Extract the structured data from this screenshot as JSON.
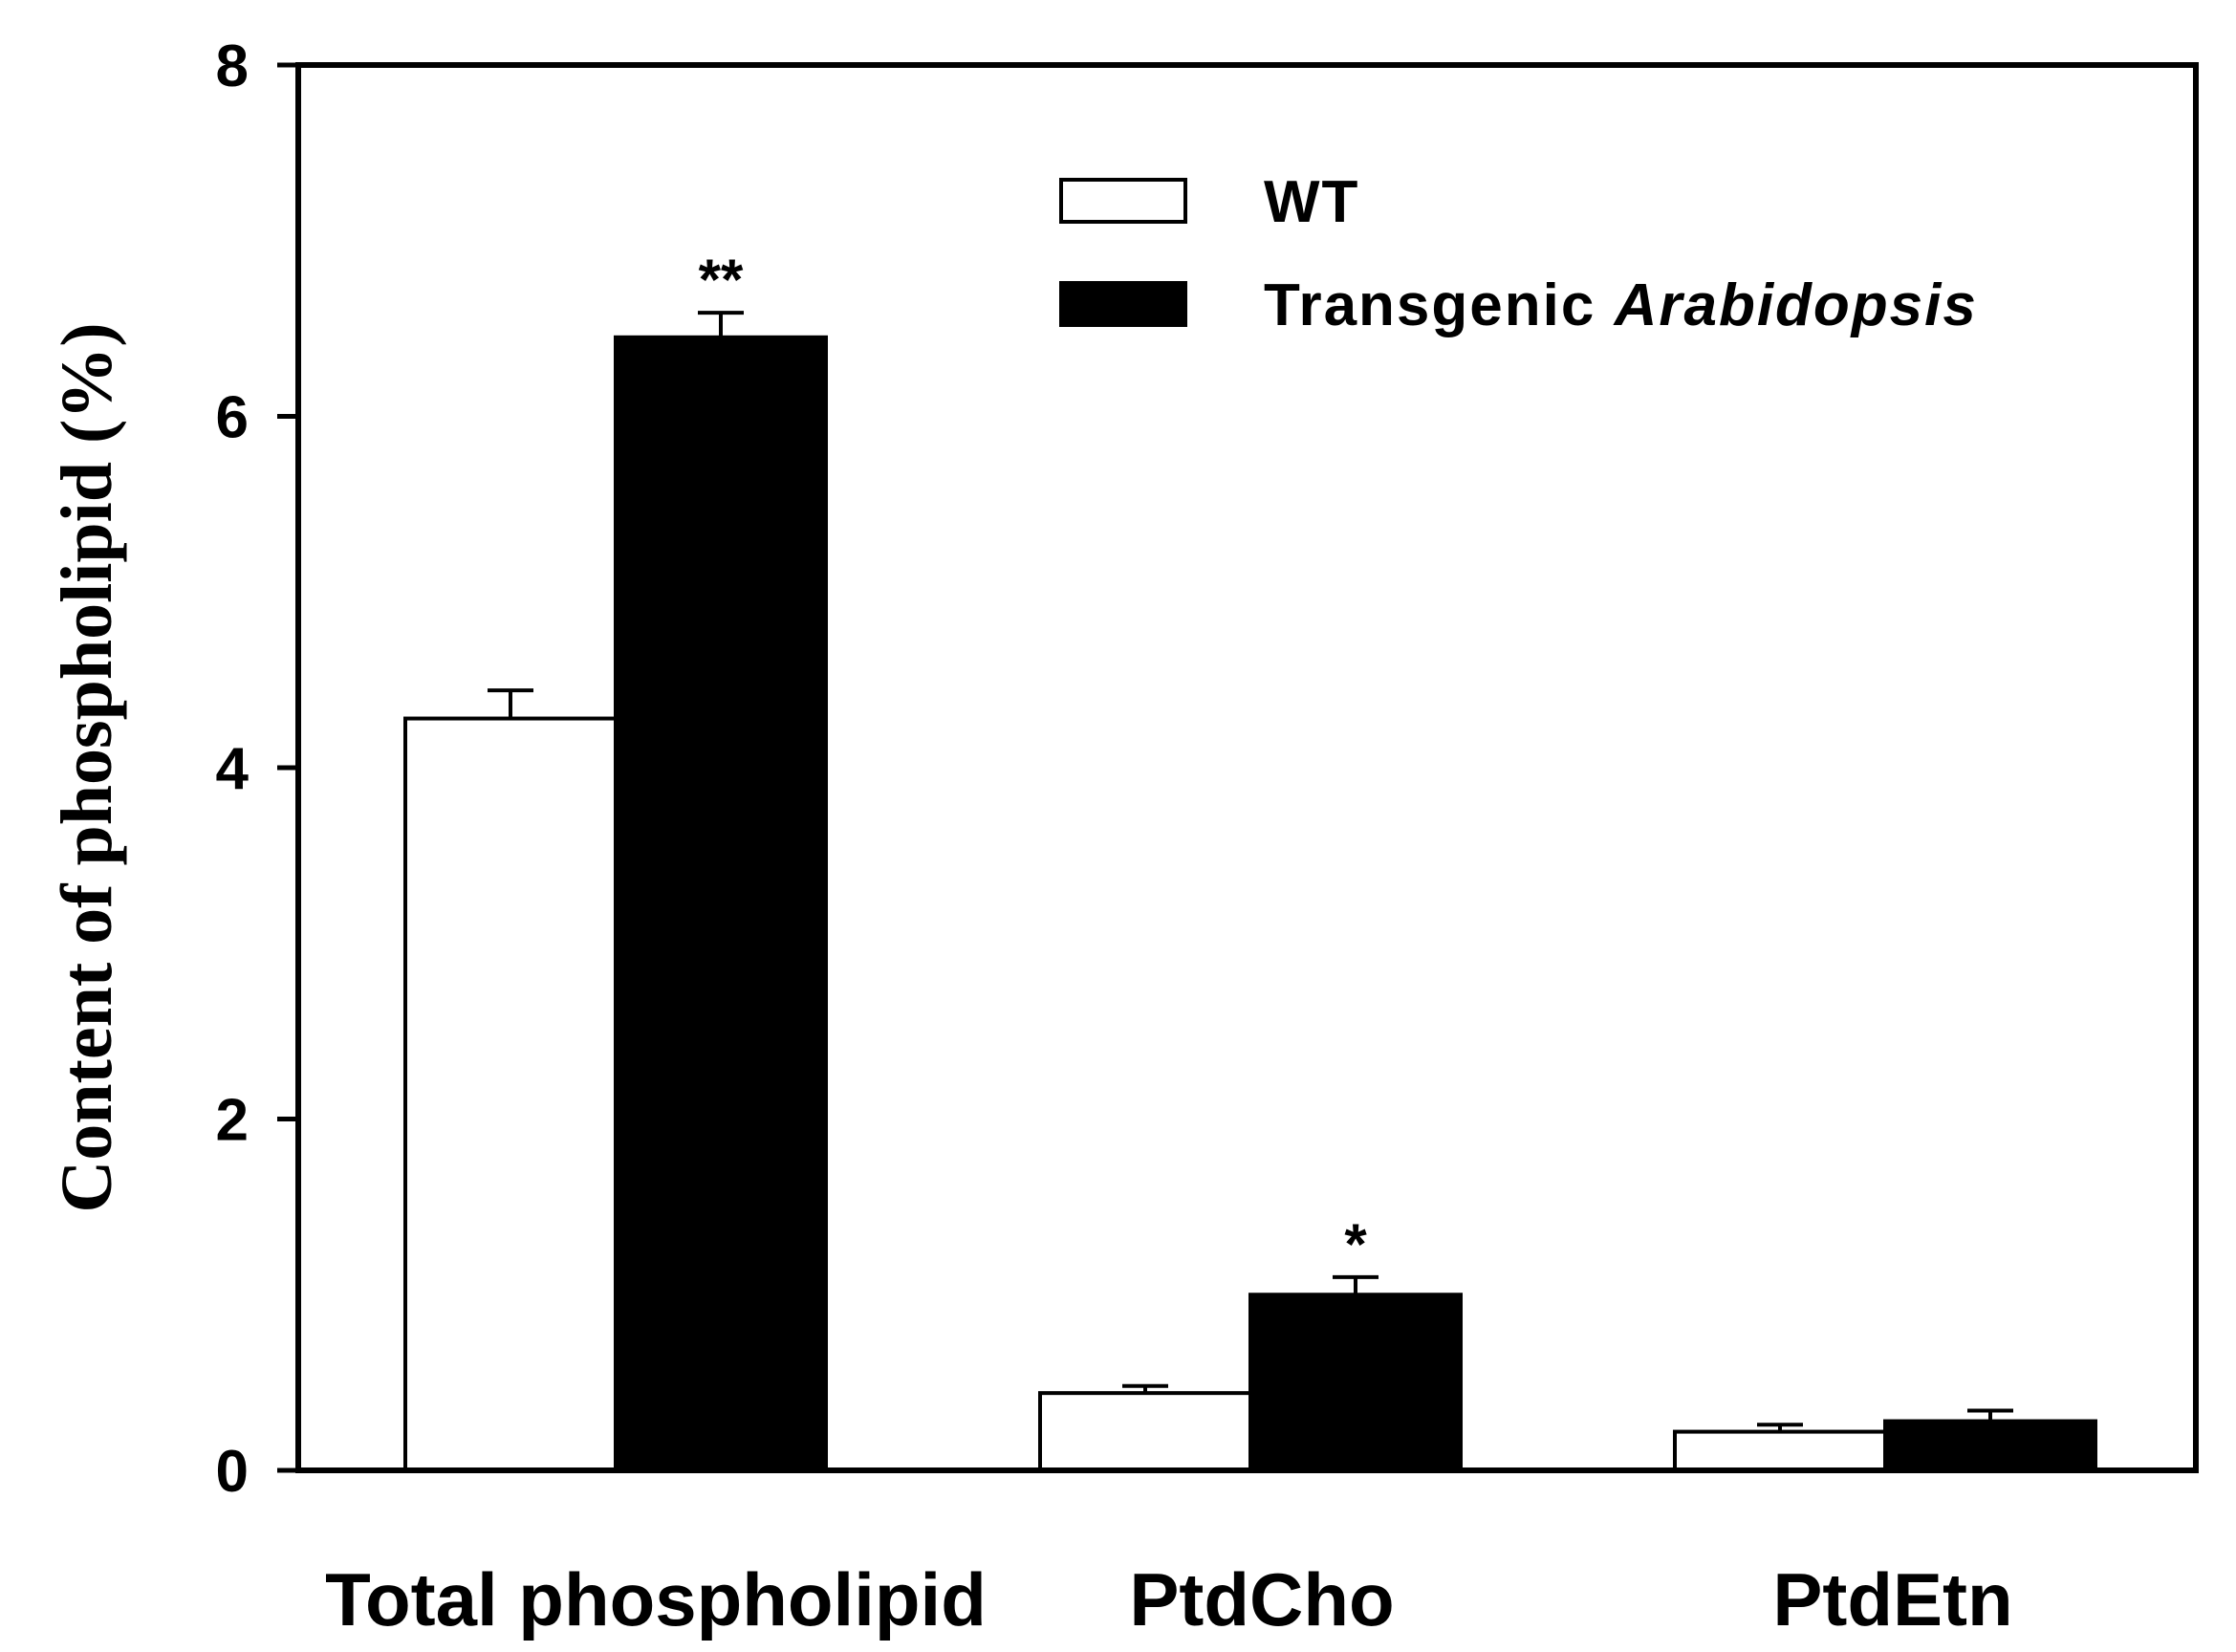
{
  "chart_data": {
    "type": "bar",
    "title": "",
    "xlabel": "",
    "ylabel": "Content of phospholipid (%)",
    "ylim": [
      0,
      8
    ],
    "yticks": [
      0,
      2,
      4,
      6,
      8
    ],
    "categories": [
      "Total phospholipid",
      "PtdCho",
      "PtdEtn"
    ],
    "series": [
      {
        "name": "WT",
        "name_plain": "WT",
        "fill": "#ffffff",
        "values": [
          4.28,
          0.44,
          0.22
        ],
        "errors": [
          0.16,
          0.04,
          0.04
        ],
        "significance": [
          "",
          "",
          ""
        ]
      },
      {
        "name": "Transgenic Arabidopsis",
        "name_plain": "Transgenic ",
        "name_italic": "Arabidopsis",
        "fill": "#000000",
        "values": [
          6.45,
          1.0,
          0.28
        ],
        "errors": [
          0.14,
          0.1,
          0.06
        ],
        "significance": [
          "**",
          "*",
          ""
        ]
      }
    ],
    "legend_position": "top-right",
    "grid": false
  }
}
